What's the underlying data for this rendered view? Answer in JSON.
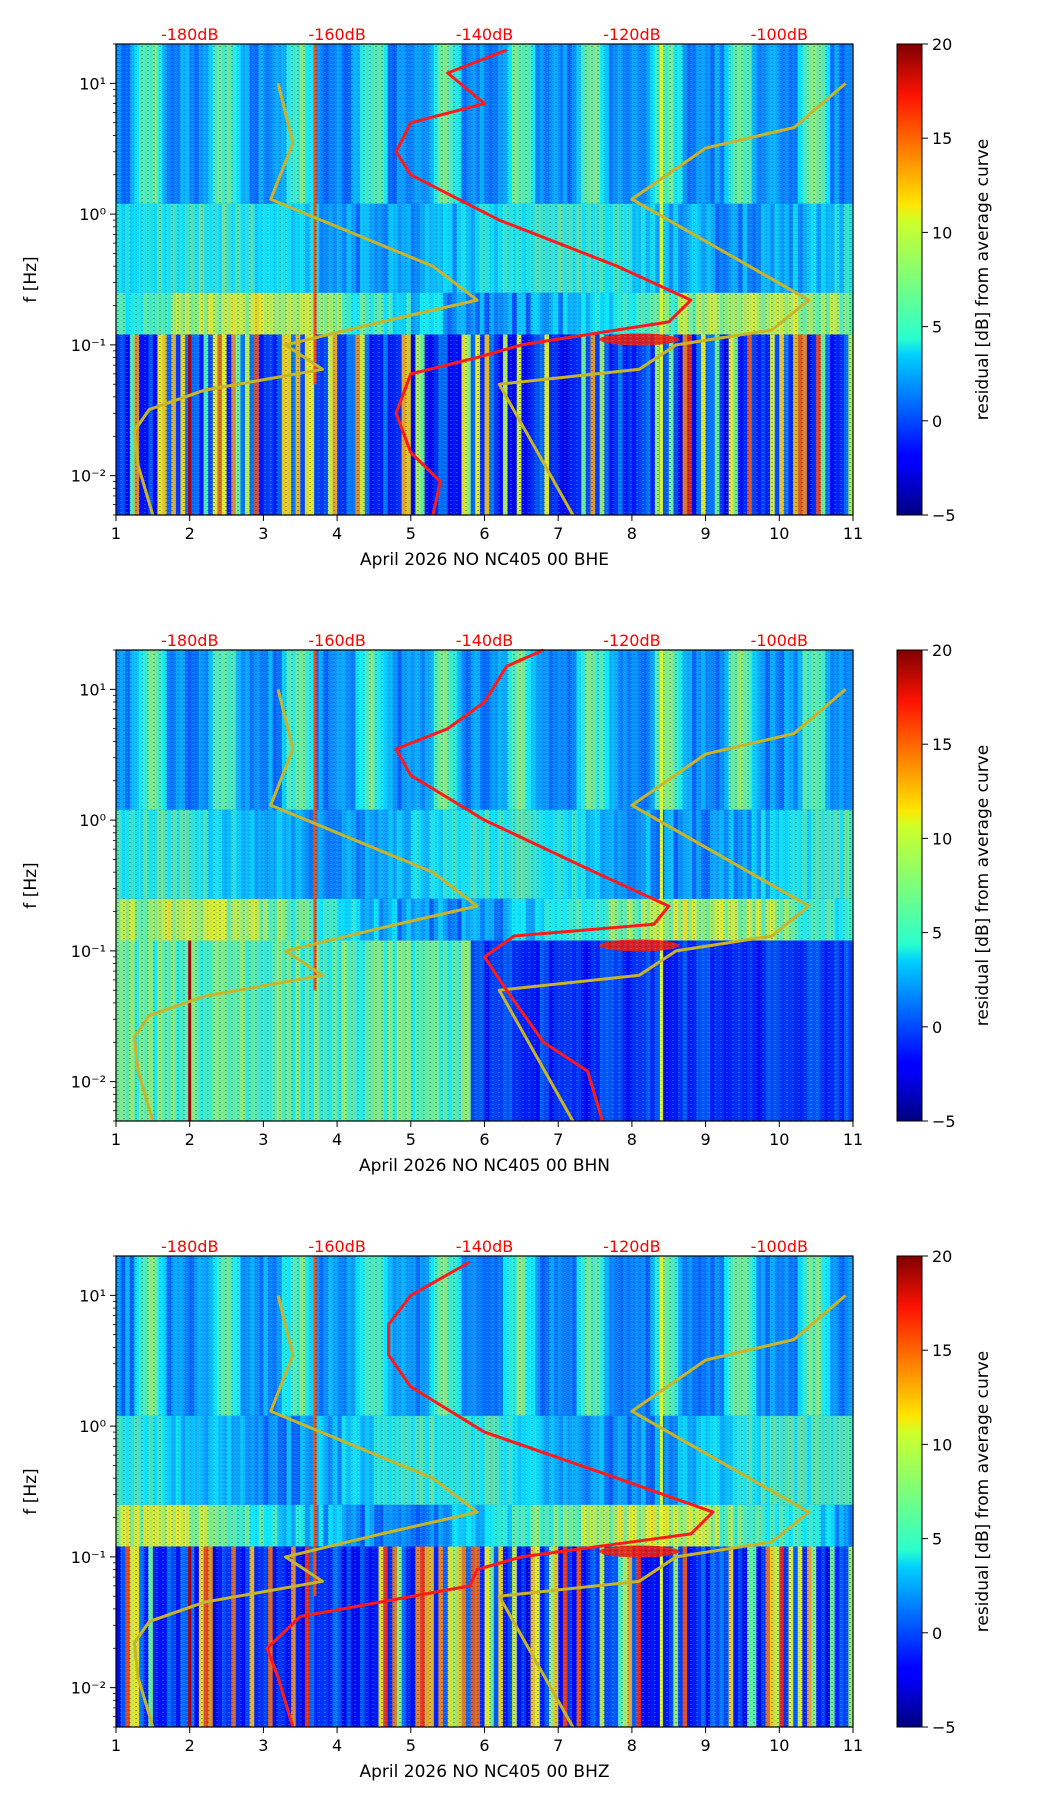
{
  "figure": {
    "colormap": "jet",
    "title_color": "#ff0000",
    "model_curve_color": "#c8b428",
    "average_curve_color": "#ff1a1a"
  },
  "chart_data": [
    {
      "type": "heatmap",
      "title": "",
      "xlabel": "April 2026 NO NC405 00 BHE",
      "ylabel": "f [Hz]",
      "colorbar_label": "residual [dB] from average curve",
      "xlim": [
        1,
        11
      ],
      "ylim": [
        0.005,
        20
      ],
      "yscale": "log",
      "clim": [
        -5,
        20
      ],
      "x_ticks": [
        "1",
        "2",
        "3",
        "4",
        "5",
        "6",
        "7",
        "8",
        "9",
        "10",
        "11"
      ],
      "y_ticks": [
        {
          "value": 10,
          "label": "10¹"
        },
        {
          "value": 1,
          "label": "10⁰"
        },
        {
          "value": 0.1,
          "label": "10⁻¹"
        },
        {
          "value": 0.01,
          "label": "10⁻²"
        }
      ],
      "colorbar_ticks": [
        "20",
        "15",
        "10",
        "5",
        "0",
        "−5"
      ],
      "top_db_labels": [
        {
          "x": 2,
          "label": "-180dB"
        },
        {
          "x": 4,
          "label": "-160dB"
        },
        {
          "x": 6,
          "label": "-140dB"
        },
        {
          "x": 8,
          "label": "-120dB"
        },
        {
          "x": 10,
          "label": "-100dB"
        }
      ],
      "average_curve": [
        [
          5.3,
          0.005
        ],
        [
          5.4,
          0.009
        ],
        [
          5.0,
          0.015
        ],
        [
          4.8,
          0.03
        ],
        [
          5.0,
          0.06
        ],
        [
          5.9,
          0.08
        ],
        [
          6.5,
          0.1
        ],
        [
          8.5,
          0.15
        ],
        [
          8.8,
          0.22
        ],
        [
          7.8,
          0.4
        ],
        [
          6.2,
          0.9
        ],
        [
          5.0,
          2.0
        ],
        [
          4.8,
          3.0
        ],
        [
          5.0,
          5.0
        ],
        [
          6.0,
          7.0
        ],
        [
          5.5,
          12.0
        ],
        [
          6.3,
          18.0
        ]
      ],
      "low_noise_model": [
        [
          1.5,
          0.005
        ],
        [
          1.3,
          0.012
        ],
        [
          1.25,
          0.022
        ],
        [
          1.45,
          0.032
        ],
        [
          2.2,
          0.045
        ],
        [
          3.8,
          0.065
        ],
        [
          3.3,
          0.1
        ],
        [
          4.6,
          0.15
        ],
        [
          5.9,
          0.22
        ],
        [
          5.3,
          0.4
        ],
        [
          4.0,
          0.8
        ],
        [
          3.1,
          1.3
        ],
        [
          3.4,
          3.5
        ],
        [
          3.2,
          10.0
        ]
      ],
      "high_noise_model": [
        [
          7.2,
          0.005
        ],
        [
          6.2,
          0.05
        ],
        [
          8.1,
          0.065
        ],
        [
          8.6,
          0.1
        ],
        [
          9.9,
          0.13
        ],
        [
          10.4,
          0.22
        ],
        [
          8.0,
          1.3
        ],
        [
          9.0,
          3.2
        ],
        [
          10.2,
          4.6
        ],
        [
          10.9,
          10.0
        ]
      ]
    },
    {
      "type": "heatmap",
      "title": "",
      "xlabel": "April 2026 NO NC405 00 BHN",
      "ylabel": "f [Hz]",
      "colorbar_label": "residual [dB] from average curve",
      "xlim": [
        1,
        11
      ],
      "ylim": [
        0.005,
        20
      ],
      "yscale": "log",
      "clim": [
        -5,
        20
      ],
      "x_ticks": [
        "1",
        "2",
        "3",
        "4",
        "5",
        "6",
        "7",
        "8",
        "9",
        "10",
        "11"
      ],
      "y_ticks": [
        {
          "value": 10,
          "label": "10¹"
        },
        {
          "value": 1,
          "label": "10⁰"
        },
        {
          "value": 0.1,
          "label": "10⁻¹"
        },
        {
          "value": 0.01,
          "label": "10⁻²"
        }
      ],
      "colorbar_ticks": [
        "20",
        "15",
        "10",
        "5",
        "0",
        "−5"
      ],
      "top_db_labels": [
        {
          "x": 2,
          "label": "-180dB"
        },
        {
          "x": 4,
          "label": "-160dB"
        },
        {
          "x": 6,
          "label": "-140dB"
        },
        {
          "x": 8,
          "label": "-120dB"
        },
        {
          "x": 10,
          "label": "-100dB"
        }
      ],
      "average_curve": [
        [
          7.6,
          0.005
        ],
        [
          7.4,
          0.012
        ],
        [
          6.8,
          0.02
        ],
        [
          6.3,
          0.05
        ],
        [
          6.0,
          0.09
        ],
        [
          6.4,
          0.13
        ],
        [
          8.3,
          0.16
        ],
        [
          8.5,
          0.22
        ],
        [
          7.5,
          0.4
        ],
        [
          6.0,
          1.0
        ],
        [
          5.0,
          2.2
        ],
        [
          4.8,
          3.5
        ],
        [
          5.5,
          5.0
        ],
        [
          6.0,
          8.0
        ],
        [
          6.3,
          15.0
        ],
        [
          6.8,
          20.0
        ]
      ],
      "low_noise_model": [
        [
          1.5,
          0.005
        ],
        [
          1.3,
          0.012
        ],
        [
          1.25,
          0.022
        ],
        [
          1.45,
          0.032
        ],
        [
          2.2,
          0.045
        ],
        [
          3.8,
          0.065
        ],
        [
          3.3,
          0.1
        ],
        [
          4.6,
          0.15
        ],
        [
          5.9,
          0.22
        ],
        [
          5.3,
          0.4
        ],
        [
          4.0,
          0.8
        ],
        [
          3.1,
          1.3
        ],
        [
          3.4,
          3.5
        ],
        [
          3.2,
          10.0
        ]
      ],
      "high_noise_model": [
        [
          7.2,
          0.005
        ],
        [
          6.2,
          0.05
        ],
        [
          8.1,
          0.065
        ],
        [
          8.6,
          0.1
        ],
        [
          9.9,
          0.13
        ],
        [
          10.4,
          0.22
        ],
        [
          8.0,
          1.3
        ],
        [
          9.0,
          3.2
        ],
        [
          10.2,
          4.6
        ],
        [
          10.9,
          10.0
        ]
      ]
    },
    {
      "type": "heatmap",
      "title": "",
      "xlabel": "April 2026 NO NC405 00 BHZ",
      "ylabel": "f [Hz]",
      "colorbar_label": "residual [dB] from average curve",
      "xlim": [
        1,
        11
      ],
      "ylim": [
        0.005,
        20
      ],
      "yscale": "log",
      "clim": [
        -5,
        20
      ],
      "x_ticks": [
        "1",
        "2",
        "3",
        "4",
        "5",
        "6",
        "7",
        "8",
        "9",
        "10",
        "11"
      ],
      "y_ticks": [
        {
          "value": 10,
          "label": "10¹"
        },
        {
          "value": 1,
          "label": "10⁰"
        },
        {
          "value": 0.1,
          "label": "10⁻¹"
        },
        {
          "value": 0.01,
          "label": "10⁻²"
        }
      ],
      "colorbar_ticks": [
        "20",
        "15",
        "10",
        "5",
        "0",
        "−5"
      ],
      "top_db_labels": [
        {
          "x": 2,
          "label": "-180dB"
        },
        {
          "x": 4,
          "label": "-160dB"
        },
        {
          "x": 6,
          "label": "-140dB"
        },
        {
          "x": 8,
          "label": "-120dB"
        },
        {
          "x": 10,
          "label": "-100dB"
        }
      ],
      "average_curve": [
        [
          3.4,
          0.005
        ],
        [
          3.2,
          0.012
        ],
        [
          3.05,
          0.02
        ],
        [
          3.5,
          0.035
        ],
        [
          5.8,
          0.06
        ],
        [
          5.9,
          0.08
        ],
        [
          6.5,
          0.1
        ],
        [
          8.8,
          0.15
        ],
        [
          9.1,
          0.22
        ],
        [
          7.8,
          0.4
        ],
        [
          6.0,
          0.9
        ],
        [
          5.0,
          2.0
        ],
        [
          4.7,
          3.5
        ],
        [
          4.7,
          6.0
        ],
        [
          5.0,
          10.0
        ],
        [
          5.8,
          18.0
        ]
      ],
      "low_noise_model": [
        [
          1.5,
          0.005
        ],
        [
          1.3,
          0.012
        ],
        [
          1.25,
          0.022
        ],
        [
          1.45,
          0.032
        ],
        [
          2.2,
          0.045
        ],
        [
          3.8,
          0.065
        ],
        [
          3.3,
          0.1
        ],
        [
          4.6,
          0.15
        ],
        [
          5.9,
          0.22
        ],
        [
          5.3,
          0.4
        ],
        [
          4.0,
          0.8
        ],
        [
          3.1,
          1.3
        ],
        [
          3.4,
          3.5
        ],
        [
          3.2,
          10.0
        ]
      ],
      "high_noise_model": [
        [
          7.2,
          0.005
        ],
        [
          6.2,
          0.05
        ],
        [
          8.1,
          0.065
        ],
        [
          8.6,
          0.1
        ],
        [
          9.9,
          0.13
        ],
        [
          10.4,
          0.22
        ],
        [
          8.0,
          1.3
        ],
        [
          9.0,
          3.2
        ],
        [
          10.2,
          4.6
        ],
        [
          10.9,
          10.0
        ]
      ]
    }
  ]
}
